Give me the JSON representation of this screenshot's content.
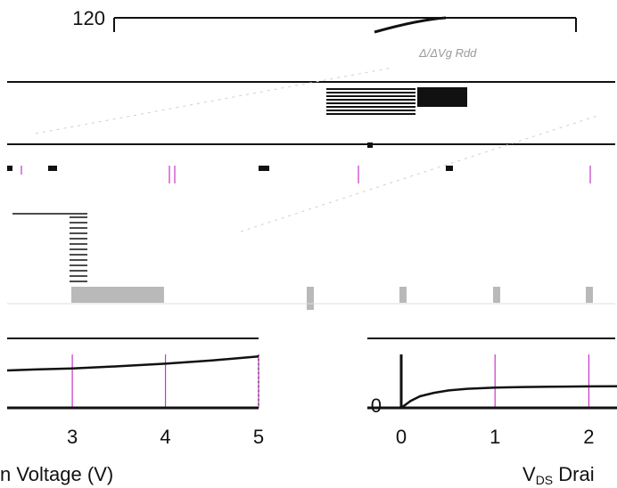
{
  "chart_data": [
    {
      "type": "line",
      "title": "",
      "xlabel": "n Voltage (V)",
      "ylabel": "",
      "x_ticks": [
        "3",
        "4",
        "5"
      ],
      "y_ticks": [
        "120"
      ],
      "xlim": [
        2.3,
        5.0
      ],
      "ylim": [
        0,
        120
      ],
      "grid": true,
      "series": [
        {
          "x": [
            2.3,
            2.6,
            3.0,
            3.5,
            4.0,
            4.5,
            5.0
          ],
          "y": [
            11.5,
            11.8,
            12.1,
            12.8,
            13.6,
            14.6,
            15.8
          ]
        }
      ]
    },
    {
      "type": "line",
      "title": "",
      "xlabel_main": "V",
      "xlabel_sub": "DS",
      "xlabel_rest": " Drai",
      "ylabel": "",
      "x_ticks": [
        "0",
        "1",
        "2"
      ],
      "y_ticks": [
        "0"
      ],
      "xlim": [
        0,
        2.3
      ],
      "ylim": [
        0,
        120
      ],
      "grid": true,
      "series": [
        {
          "x": [
            0,
            0.1,
            0.2,
            0.35,
            0.5,
            0.7,
            1.0,
            1.3,
            1.6,
            2.0,
            2.3
          ],
          "y": [
            0,
            12,
            20,
            26,
            30,
            33,
            35,
            36,
            36.6,
            37,
            37.3
          ]
        }
      ]
    }
  ]
}
